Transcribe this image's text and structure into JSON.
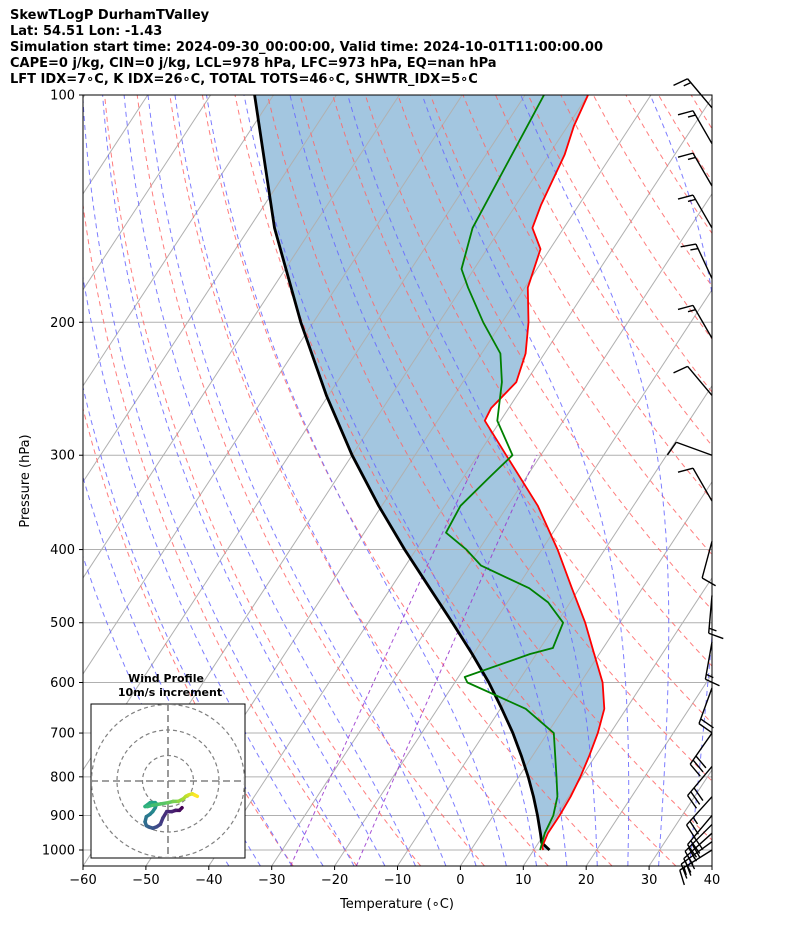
{
  "header": {
    "line1": "SkewTLogP DurhamTValley",
    "line2": "Lat: 54.51   Lon: -1.43",
    "line3": "Simulation start time: 2024-09-30_00:00:00, Valid time: 2024-10-01T11:00:00.00",
    "line4": "CAPE=0 j/kg, CIN=0 j/kg, LCL=978 hPa, LFC=973 hPa, EQ=nan hPa",
    "line5": "LFT IDX=7∘C, K IDX=26∘C, TOTAL TOTS=46∘C, SHWTR_IDX=5∘C"
  },
  "chart_data": {
    "type": "line",
    "subtype": "skew-T log-P",
    "xlabel": "Temperature (∘C)",
    "ylabel": "Pressure (hPa)",
    "xlim": [
      -60,
      40
    ],
    "ylim": [
      1050,
      100
    ],
    "y_scale": "log",
    "x_ticks": [
      "−60",
      "−50",
      "−40",
      "−30",
      "−20",
      "−10",
      "0",
      "10",
      "20",
      "30",
      "40"
    ],
    "y_ticks": [
      "100",
      "200",
      "300",
      "400",
      "500",
      "600",
      "700",
      "800",
      "900",
      "1000"
    ],
    "grid": true,
    "colors": {
      "temperature": "#ff0000",
      "dewpoint": "#008000",
      "parcel": "#000000",
      "shading": "#a3c6e0",
      "dry_adiabats": "#ff6666",
      "moist_adiabats": "#6666ff",
      "mixing_ratio": "#9933cc"
    },
    "series": [
      {
        "key": "temperature",
        "pressure": [
          1000,
          990,
          950,
          900,
          850,
          800,
          750,
          700,
          650,
          600,
          550,
          500,
          450,
          400,
          350,
          300,
          270,
          260,
          240,
          220,
          200,
          180,
          160,
          150,
          140,
          120,
          110,
          100
        ],
        "temperature": [
          11.5,
          11,
          10.5,
          10.5,
          10.3,
          9.8,
          9.0,
          8.0,
          6.5,
          3.5,
          -0.8,
          -5.5,
          -11.2,
          -17.5,
          -25.2,
          -35.5,
          -42.5,
          -42.8,
          -41.5,
          -43.0,
          -45.8,
          -49.5,
          -51.5,
          -55.0,
          -56.0,
          -57.5,
          -59.0,
          -60.0
        ]
      },
      {
        "key": "dewpoint",
        "pressure": [
          1000,
          950,
          900,
          850,
          800,
          700,
          650,
          600,
          590,
          550,
          540,
          500,
          470,
          450,
          420,
          400,
          380,
          350,
          320,
          300,
          270,
          240,
          220,
          200,
          180,
          170,
          150,
          100
        ],
        "temperature": [
          11,
          10.0,
          9.5,
          8.2,
          6.0,
          1.0,
          -6.0,
          -18.0,
          -19.0,
          -11.0,
          -8.0,
          -9.0,
          -13.5,
          -18.0,
          -28.0,
          -32.0,
          -37.0,
          -37.5,
          -35.8,
          -34.5,
          -40.5,
          -43.8,
          -47.0,
          -53.0,
          -59.0,
          -62.0,
          -64.5,
          -67.0
        ]
      },
      {
        "key": "parcel",
        "pressure": [
          1000,
          978,
          950,
          900,
          850,
          800,
          750,
          700,
          650,
          600,
          550,
          500,
          450,
          400,
          350,
          300,
          250,
          200,
          150,
          100
        ],
        "temperature": [
          12.5,
          10.5,
          9.3,
          7.0,
          4.4,
          1.5,
          -1.8,
          -5.5,
          -9.8,
          -14.6,
          -20.2,
          -26.6,
          -33.8,
          -41.8,
          -50.5,
          -60.0,
          -70.3,
          -82.0,
          -96.0,
          -113.0
        ]
      }
    ],
    "wind_barbs": [
      {
        "pressure": 1000,
        "direction": 238,
        "speed_kt": 15
      },
      {
        "pressure": 975,
        "direction": 234,
        "speed_kt": 20
      },
      {
        "pressure": 950,
        "direction": 228,
        "speed_kt": 25
      },
      {
        "pressure": 925,
        "direction": 225,
        "speed_kt": 30
      },
      {
        "pressure": 900,
        "direction": 220,
        "speed_kt": 30
      },
      {
        "pressure": 850,
        "direction": 222,
        "speed_kt": 25
      },
      {
        "pressure": 775,
        "direction": 220,
        "speed_kt": 30
      },
      {
        "pressure": 700,
        "direction": 215,
        "speed_kt": 30
      },
      {
        "pressure": 610,
        "direction": 200,
        "speed_kt": 20
      },
      {
        "pressure": 530,
        "direction": 190,
        "speed_kt": 15
      },
      {
        "pressure": 460,
        "direction": 185,
        "speed_kt": 15
      },
      {
        "pressure": 390,
        "direction": 195,
        "speed_kt": 10
      },
      {
        "pressure": 345,
        "direction": 330,
        "speed_kt": 10
      },
      {
        "pressure": 300,
        "direction": 290,
        "speed_kt": 10
      },
      {
        "pressure": 250,
        "direction": 320,
        "speed_kt": 10
      },
      {
        "pressure": 210,
        "direction": 330,
        "speed_kt": 15
      },
      {
        "pressure": 175,
        "direction": 335,
        "speed_kt": 15
      },
      {
        "pressure": 150,
        "direction": 330,
        "speed_kt": 15
      },
      {
        "pressure": 132,
        "direction": 330,
        "speed_kt": 15
      },
      {
        "pressure": 116,
        "direction": 330,
        "speed_kt": 15
      },
      {
        "pressure": 104,
        "direction": 320,
        "speed_kt": 15
      }
    ],
    "hodograph": {
      "title_line1": "Wind Profile",
      "title_line2": "10m/s increment",
      "rings_ms": [
        10,
        20,
        30
      ],
      "u": [
        5.5,
        4.5,
        3.0,
        1.5,
        -0.5,
        -2.0,
        -3.0,
        -4.5,
        -6.0,
        -7.5,
        -8.5,
        -9.0,
        -8.5,
        -7.0,
        -6.0,
        -5.0,
        -4.5,
        -5.0,
        -7.0,
        -9.0,
        -8.0,
        -6.0,
        -3.0,
        0.0,
        2.0,
        4.0,
        6.0,
        7.0,
        8.0,
        9.5,
        10.5,
        11.5
      ],
      "v": [
        -10.5,
        -11.5,
        -11.5,
        -12.0,
        -12.0,
        -14.5,
        -17.0,
        -18.0,
        -18.5,
        -18.0,
        -17.5,
        -16.0,
        -14.0,
        -13.0,
        -12.0,
        -10.5,
        -9.0,
        -8.5,
        -8.5,
        -10.0,
        -10.0,
        -9.5,
        -9.0,
        -8.5,
        -8.0,
        -8.0,
        -7.0,
        -6.0,
        -5.5,
        -5.0,
        -5.5,
        -6.0
      ]
    }
  }
}
